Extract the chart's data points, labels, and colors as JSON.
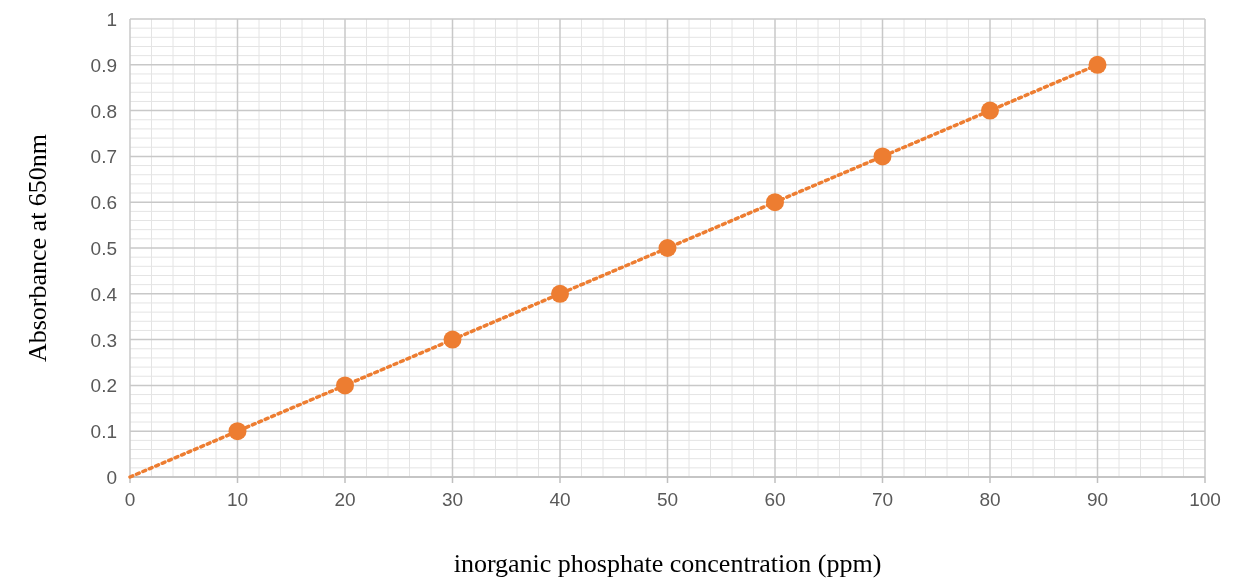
{
  "chart_data": {
    "type": "scatter",
    "xlabel": "inorganic phosphate concentration (ppm)",
    "ylabel": "Absorbance at 650nm",
    "xlim": [
      0,
      100
    ],
    "xticks": [
      0,
      10,
      20,
      30,
      40,
      50,
      60,
      70,
      80,
      90,
      100
    ],
    "ylim": [
      0,
      1
    ],
    "yticks": [
      0,
      0.1,
      0.2,
      0.3,
      0.4,
      0.5,
      0.6,
      0.7,
      0.8,
      0.9,
      1
    ],
    "grid": true,
    "series": [
      {
        "type": "line",
        "x": [
          0,
          90
        ],
        "values": [
          0,
          0.9
        ],
        "color": "#ed7d31",
        "line_style": "dotted",
        "marker": "none"
      },
      {
        "x": [
          10,
          20,
          30,
          40,
          50,
          60,
          70,
          80,
          90
        ],
        "values": [
          0.1,
          0.2,
          0.3,
          0.4,
          0.5,
          0.6,
          0.7,
          0.8,
          0.9
        ],
        "color": "#ed7d31",
        "marker": "circle"
      }
    ]
  }
}
